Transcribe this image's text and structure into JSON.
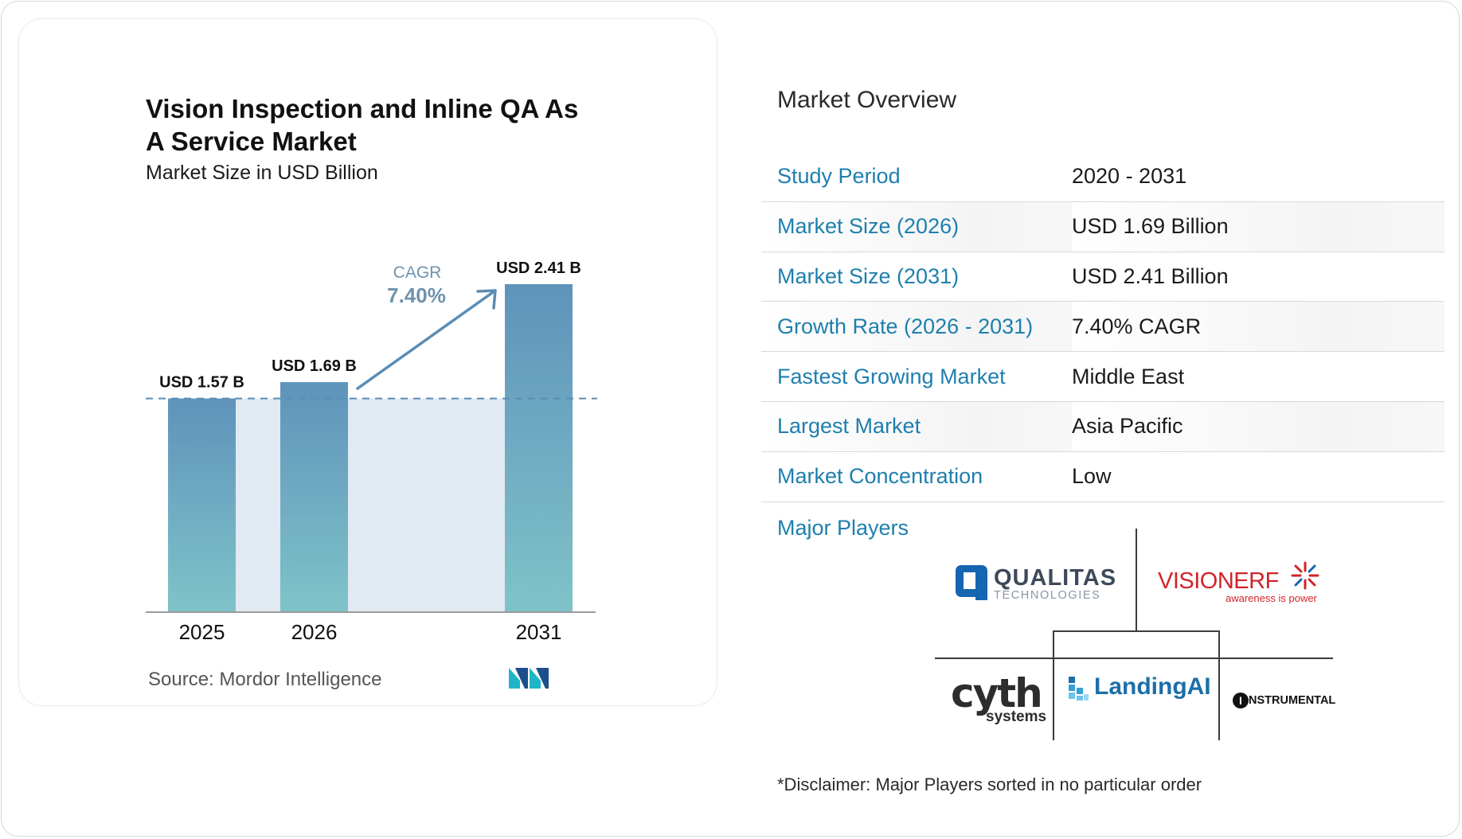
{
  "chart": {
    "title": "Vision Inspection and Inline QA As A Service Market",
    "subtitle": "Market Size in USD Billion",
    "cagr_label": "CAGR",
    "cagr_value": "7.40%",
    "source": "Source:  Mordor Intelligence"
  },
  "chart_data": {
    "type": "bar",
    "categories": [
      "2025",
      "2026",
      "2031"
    ],
    "values": [
      1.57,
      1.69,
      2.41
    ],
    "data_labels": [
      "USD 1.57 B",
      "USD 1.69 B",
      "USD 2.41 B"
    ],
    "title": "Vision Inspection and Inline QA As A Service Market",
    "subtitle": "Market Size in USD Billion",
    "ylim": [
      0,
      2.41
    ],
    "grid": false,
    "colors": {
      "bar_top": "#5f93bb",
      "bar_bottom": "#7fc3c8",
      "band": "#e1e9f3",
      "arrow": "#5b8db5"
    }
  },
  "overview": {
    "title": "Market Overview",
    "rows": [
      {
        "key": "Study Period",
        "value": "2020 - 2031"
      },
      {
        "key": "Market Size (2026)",
        "value": "USD 1.69 Billion"
      },
      {
        "key": "Market Size (2031)",
        "value": "USD 2.41 Billion"
      },
      {
        "key": "Growth Rate (2026 - 2031)",
        "value": "7.40% CAGR"
      },
      {
        "key": "Fastest Growing Market",
        "value": "Middle East"
      },
      {
        "key": "Largest Market",
        "value": "Asia Pacific"
      },
      {
        "key": "Market Concentration",
        "value": "Low"
      }
    ],
    "players_label": "Major Players",
    "disclaimer": "*Disclaimer: Major Players sorted in no particular order"
  },
  "players": {
    "qualitas": {
      "name": "QUALITAS",
      "sub": "TECHNOLOGIES"
    },
    "visionerf": {
      "name": "VISIONERF",
      "sub": "awareness is power"
    },
    "cyth": {
      "name": "cyth",
      "sub": "systems"
    },
    "landingai": {
      "name": "LandingAI"
    },
    "instrumental": {
      "name": "NSTRUMENTAL",
      "initial": "I"
    }
  },
  "colors": {
    "accent": "#1e7fae",
    "qualitas": "#1565b0",
    "visionerf": "#d2232a",
    "landing": "#1c6fa8"
  }
}
